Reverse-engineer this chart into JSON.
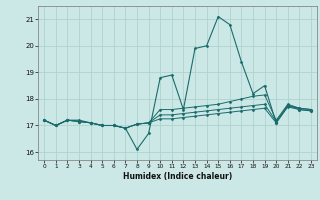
{
  "xlabel": "Humidex (Indice chaleur)",
  "xlim": [
    -0.5,
    23.5
  ],
  "ylim": [
    15.7,
    21.5
  ],
  "yticks": [
    16,
    17,
    18,
    19,
    20,
    21
  ],
  "xticks": [
    0,
    1,
    2,
    3,
    4,
    5,
    6,
    7,
    8,
    9,
    10,
    11,
    12,
    13,
    14,
    15,
    16,
    17,
    18,
    19,
    20,
    21,
    22,
    23
  ],
  "background_color": "#cce8e6",
  "grid_color": "#aacfcc",
  "line_color": "#1a6b6b",
  "lines": [
    [
      17.2,
      17.0,
      17.2,
      17.2,
      17.1,
      17.0,
      17.0,
      16.9,
      16.1,
      16.7,
      18.8,
      18.9,
      17.6,
      19.9,
      20.0,
      21.1,
      20.8,
      19.4,
      18.2,
      18.5,
      17.1,
      17.75,
      17.65,
      17.6
    ],
    [
      17.2,
      17.0,
      17.2,
      17.15,
      17.1,
      17.0,
      17.0,
      16.9,
      17.05,
      17.1,
      17.6,
      17.6,
      17.65,
      17.7,
      17.75,
      17.8,
      17.9,
      18.0,
      18.1,
      18.15,
      17.2,
      17.8,
      17.65,
      17.6
    ],
    [
      17.2,
      17.0,
      17.2,
      17.15,
      17.1,
      17.0,
      17.0,
      16.9,
      17.05,
      17.1,
      17.4,
      17.4,
      17.45,
      17.5,
      17.55,
      17.6,
      17.65,
      17.7,
      17.75,
      17.8,
      17.15,
      17.75,
      17.6,
      17.55
    ],
    [
      17.2,
      17.0,
      17.2,
      17.15,
      17.1,
      17.0,
      17.0,
      16.9,
      17.05,
      17.1,
      17.25,
      17.25,
      17.3,
      17.35,
      17.4,
      17.45,
      17.5,
      17.55,
      17.6,
      17.65,
      17.1,
      17.7,
      17.6,
      17.55
    ]
  ]
}
